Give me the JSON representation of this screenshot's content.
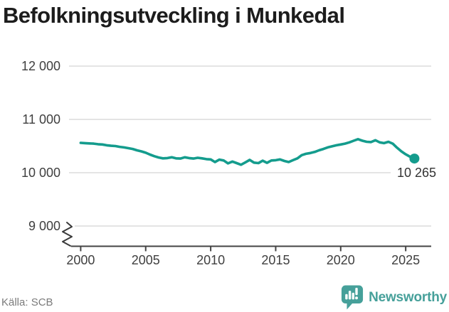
{
  "title": "Befolkningsutveckling i Munkedal",
  "chart_data": {
    "type": "line",
    "title": "Befolkningsutveckling i Munkedal",
    "xlabel": "",
    "ylabel": "",
    "xlim": [
      1999.3,
      2027.0
    ],
    "ylim": [
      9000,
      12000
    ],
    "axis_break_below": 9000,
    "grid": "horizontal",
    "legend": "none",
    "y_ticks": [
      {
        "label": "12 000",
        "value": 12000
      },
      {
        "label": "11 000",
        "value": 11000
      },
      {
        "label": "10 000",
        "value": 10000
      },
      {
        "label": "9 000",
        "value": 9000
      }
    ],
    "x_ticks": [
      {
        "label": "2000",
        "value": 2000
      },
      {
        "label": "2005",
        "value": 2005
      },
      {
        "label": "2010",
        "value": 2010
      },
      {
        "label": "2015",
        "value": 2015
      },
      {
        "label": "2020",
        "value": 2020
      },
      {
        "label": "2025",
        "value": 2025
      }
    ],
    "series": [
      {
        "name": "Befolkning i Munkedal",
        "points": [
          [
            2000.0,
            10560
          ],
          [
            2000.33,
            10555
          ],
          [
            2000.67,
            10550
          ],
          [
            2001.0,
            10545
          ],
          [
            2001.33,
            10535
          ],
          [
            2001.67,
            10530
          ],
          [
            2002.0,
            10515
          ],
          [
            2002.33,
            10505
          ],
          [
            2002.67,
            10500
          ],
          [
            2003.0,
            10485
          ],
          [
            2003.33,
            10475
          ],
          [
            2003.67,
            10460
          ],
          [
            2004.0,
            10445
          ],
          [
            2004.33,
            10420
          ],
          [
            2004.67,
            10400
          ],
          [
            2005.0,
            10375
          ],
          [
            2005.33,
            10340
          ],
          [
            2005.67,
            10310
          ],
          [
            2006.0,
            10285
          ],
          [
            2006.33,
            10270
          ],
          [
            2006.67,
            10275
          ],
          [
            2007.0,
            10290
          ],
          [
            2007.33,
            10270
          ],
          [
            2007.67,
            10265
          ],
          [
            2008.0,
            10290
          ],
          [
            2008.33,
            10275
          ],
          [
            2008.67,
            10265
          ],
          [
            2009.0,
            10280
          ],
          [
            2009.33,
            10270
          ],
          [
            2009.67,
            10255
          ],
          [
            2010.0,
            10250
          ],
          [
            2010.33,
            10200
          ],
          [
            2010.67,
            10245
          ],
          [
            2011.0,
            10230
          ],
          [
            2011.33,
            10175
          ],
          [
            2011.67,
            10210
          ],
          [
            2012.0,
            10180
          ],
          [
            2012.33,
            10150
          ],
          [
            2012.67,
            10195
          ],
          [
            2013.0,
            10240
          ],
          [
            2013.33,
            10190
          ],
          [
            2013.67,
            10180
          ],
          [
            2014.0,
            10225
          ],
          [
            2014.33,
            10185
          ],
          [
            2014.67,
            10230
          ],
          [
            2015.0,
            10235
          ],
          [
            2015.33,
            10250
          ],
          [
            2015.67,
            10220
          ],
          [
            2016.0,
            10200
          ],
          [
            2016.33,
            10235
          ],
          [
            2016.67,
            10270
          ],
          [
            2017.0,
            10330
          ],
          [
            2017.33,
            10355
          ],
          [
            2017.67,
            10370
          ],
          [
            2018.0,
            10390
          ],
          [
            2018.33,
            10420
          ],
          [
            2018.67,
            10445
          ],
          [
            2019.0,
            10475
          ],
          [
            2019.33,
            10495
          ],
          [
            2019.67,
            10515
          ],
          [
            2020.0,
            10530
          ],
          [
            2020.33,
            10545
          ],
          [
            2020.67,
            10570
          ],
          [
            2021.0,
            10600
          ],
          [
            2021.33,
            10630
          ],
          [
            2021.67,
            10600
          ],
          [
            2022.0,
            10580
          ],
          [
            2022.33,
            10575
          ],
          [
            2022.67,
            10610
          ],
          [
            2023.0,
            10570
          ],
          [
            2023.33,
            10555
          ],
          [
            2023.67,
            10580
          ],
          [
            2024.0,
            10545
          ],
          [
            2024.33,
            10470
          ],
          [
            2024.67,
            10400
          ],
          [
            2025.0,
            10345
          ],
          [
            2025.33,
            10300
          ],
          [
            2025.67,
            10265
          ]
        ]
      }
    ],
    "annotation": {
      "label": "10 265",
      "value": 10265
    },
    "colors": {
      "line": "#149c8d",
      "grid": "#e4e4e4",
      "axis": "#444444",
      "tick_text": "#3f3f3f"
    }
  },
  "footer": {
    "source": "Källa: SCB",
    "brand": "Newsworthy"
  }
}
